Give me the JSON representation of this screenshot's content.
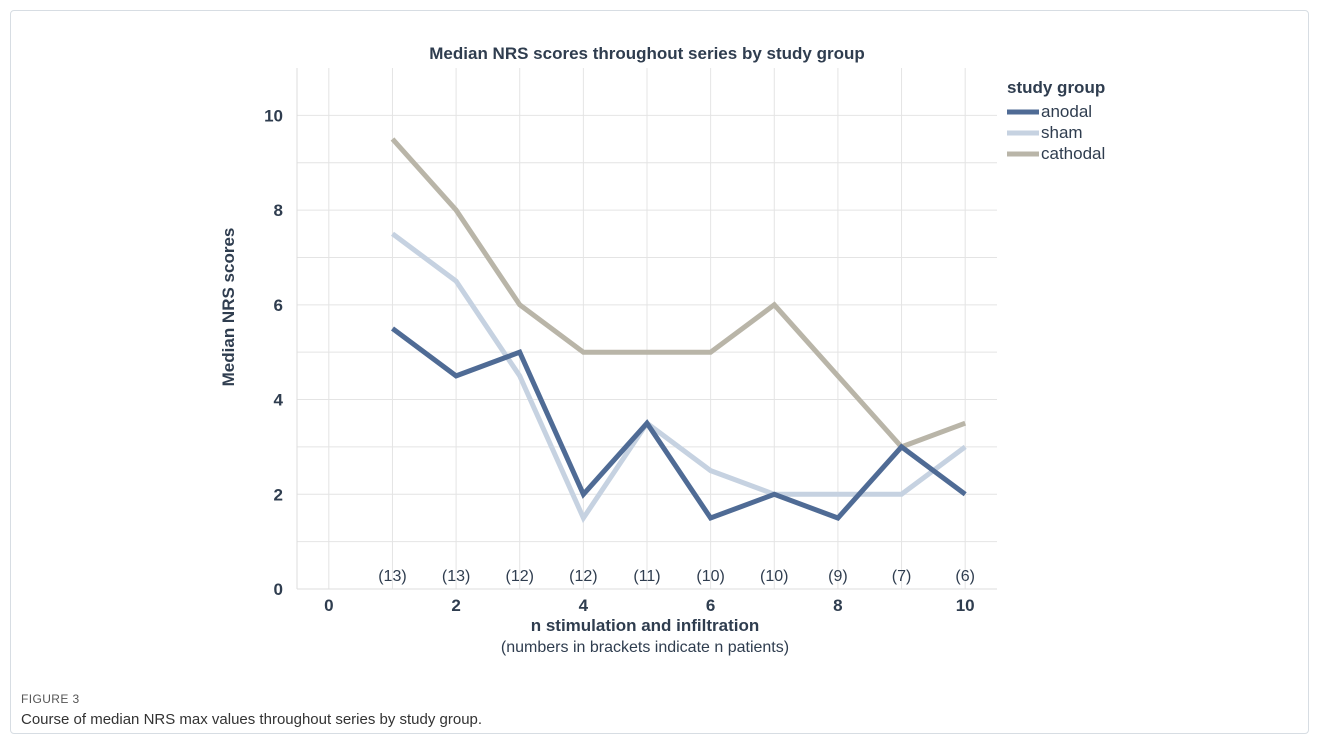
{
  "figure": {
    "label": "FIGURE 3",
    "caption": "Course of median NRS max values throughout series by study group."
  },
  "chart_data": {
    "type": "line",
    "title": "Median NRS scores throughout series by study group",
    "xlabel": "n stimulation and infiltration",
    "xlabel_note": "(numbers in brackets indicate n patients)",
    "ylabel": "Median NRS scores",
    "xlim": [
      -0.5,
      10.5
    ],
    "ylim": [
      0,
      11
    ],
    "x_ticks": [
      "0",
      "2",
      "4",
      "6",
      "8",
      "10"
    ],
    "y_ticks": [
      "0",
      "2",
      "4",
      "6",
      "8",
      "10"
    ],
    "x": [
      1,
      2,
      3,
      4,
      5,
      6,
      7,
      8,
      9,
      10
    ],
    "patient_counts": [
      "(13)",
      "(13)",
      "(12)",
      "(12)",
      "(11)",
      "(10)",
      "(10)",
      "(9)",
      "(7)",
      "(6)"
    ],
    "grid": true,
    "legend_title": "study group",
    "legend_position": "top-right outside",
    "series": [
      {
        "name": "anodal",
        "color": "#4f6b95",
        "values": [
          5.5,
          4.5,
          5,
          2,
          3.5,
          1.5,
          2,
          1.5,
          3,
          2
        ]
      },
      {
        "name": "sham",
        "color": "#c6d2e1",
        "values": [
          7.5,
          6.5,
          4.5,
          1.5,
          3.5,
          2.5,
          2,
          2,
          2,
          3
        ]
      },
      {
        "name": "cathodal",
        "color": "#b9b5a8",
        "values": [
          9.5,
          8,
          6,
          5,
          5,
          5,
          6,
          4.5,
          3,
          3.5
        ]
      }
    ]
  }
}
